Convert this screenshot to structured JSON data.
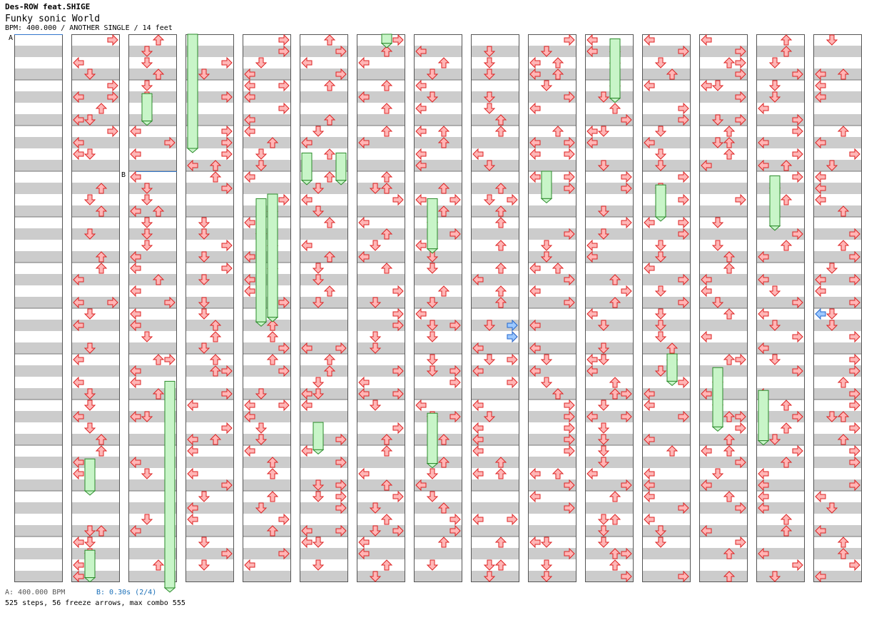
{
  "song": {
    "artist": "Des-ROW feat.SHIGE",
    "title": "Funky sonic World",
    "meta": "BPM: 400.000 / ANOTHER SINGLE / 14 feet"
  },
  "markers": {
    "a_label": "A",
    "b_label": "B",
    "a_legend": "A: 400.000 BPM",
    "b_legend": "B: 0.30s (2/4)"
  },
  "stats": "525 steps, 56 freeze arrows, max combo 555",
  "colors": {
    "band": "#cccccc",
    "arrow_fill": "#ffb6b6",
    "arrow_stroke": "#dd2222",
    "freeze_fill": "#c8f5c8",
    "freeze_stroke": "#2a8a2a",
    "blue_fill": "#9cc8ff",
    "blue_stroke": "#2266cc",
    "marker_line": "#3377cc"
  },
  "chart_data": {
    "type": "step-chart",
    "mode": "single",
    "columns": 15,
    "measures_per_column": 12,
    "lanes": [
      "left",
      "down",
      "up",
      "right"
    ],
    "freeze_arrows": [
      {
        "col": 3,
        "lane": 0,
        "from": 0.0,
        "to": 2.5
      },
      {
        "col": 2,
        "lane": 3,
        "from": 7.6,
        "to": 12.5
      },
      {
        "col": 4,
        "lane": 1,
        "from": 3.6,
        "to": 6.3
      },
      {
        "col": 10,
        "lane": 2,
        "from": 0.1,
        "to": 1.4
      }
    ]
  },
  "icons": {
    "arrow": "arrow-icon",
    "freeze": "freeze-arrow-icon"
  }
}
